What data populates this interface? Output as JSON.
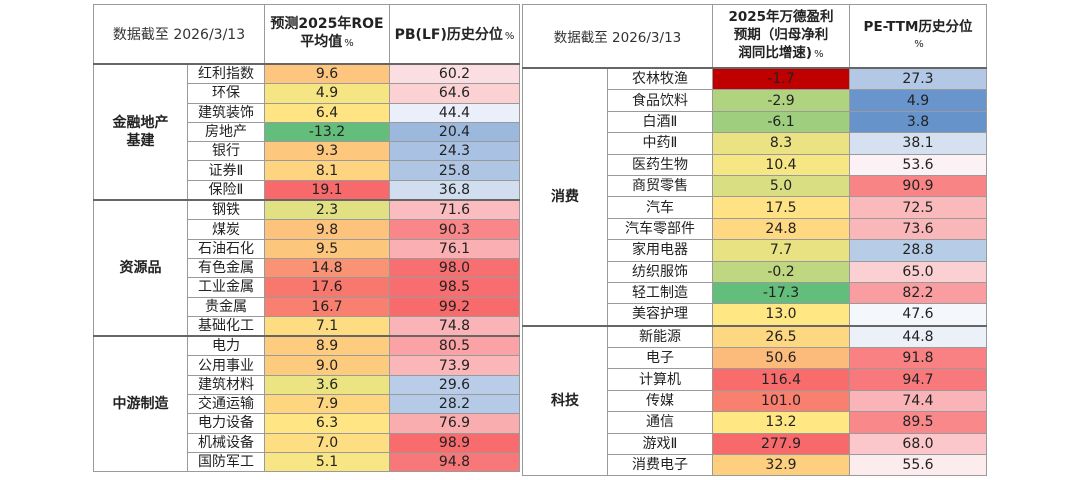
{
  "left": {
    "date_label": "数据截至 2026/3/13",
    "col1_line1": "预测2025年ROE",
    "col1_line2": "平均值",
    "col1_unit": "%",
    "col2": "PB(LF)历史分位",
    "col2_unit": "%",
    "groups": [
      {
        "name": "金融地产基建",
        "rows": [
          {
            "ind": "红利指数",
            "roe": "9.6",
            "pb": "60.2"
          },
          {
            "ind": "环保",
            "roe": "4.9",
            "pb": "64.6"
          },
          {
            "ind": "建筑装饰",
            "roe": "6.4",
            "pb": "44.4"
          },
          {
            "ind": "房地产",
            "roe": "-13.2",
            "pb": "20.4"
          },
          {
            "ind": "银行",
            "roe": "9.3",
            "pb": "24.3"
          },
          {
            "ind": "证券Ⅱ",
            "roe": "8.1",
            "pb": "25.8"
          },
          {
            "ind": "保险Ⅱ",
            "roe": "19.1",
            "pb": "36.8"
          }
        ]
      },
      {
        "name": "资源品",
        "rows": [
          {
            "ind": "钢铁",
            "roe": "2.3",
            "pb": "71.6"
          },
          {
            "ind": "煤炭",
            "roe": "9.8",
            "pb": "90.3"
          },
          {
            "ind": "石油石化",
            "roe": "9.5",
            "pb": "76.1"
          },
          {
            "ind": "有色金属",
            "roe": "14.8",
            "pb": "98.0"
          },
          {
            "ind": "工业金属",
            "roe": "17.6",
            "pb": "98.5"
          },
          {
            "ind": "贵金属",
            "roe": "16.7",
            "pb": "99.2"
          },
          {
            "ind": "基础化工",
            "roe": "7.1",
            "pb": "74.8"
          }
        ]
      },
      {
        "name": "中游制造",
        "rows": [
          {
            "ind": "电力",
            "roe": "8.9",
            "pb": "80.5"
          },
          {
            "ind": "公用事业",
            "roe": "9.0",
            "pb": "73.9"
          },
          {
            "ind": "建筑材料",
            "roe": "3.6",
            "pb": "29.6"
          },
          {
            "ind": "交通运输",
            "roe": "7.9",
            "pb": "28.2"
          },
          {
            "ind": "电力设备",
            "roe": "6.3",
            "pb": "76.9"
          },
          {
            "ind": "机械设备",
            "roe": "7.0",
            "pb": "98.9"
          },
          {
            "ind": "国防军工",
            "roe": "5.1",
            "pb": "94.8"
          }
        ]
      }
    ]
  },
  "right": {
    "date_label": "数据截至 2026/3/13",
    "col1_line1": "2025年万德盈利",
    "col1_line2": "预期（归母净利",
    "col1_line3": "润同比增速)",
    "col1_unit": "%",
    "col2_line1": "PE-TTM历史分位",
    "col2_unit": "%",
    "groups": [
      {
        "name": "消费",
        "rows": [
          {
            "ind": "农林牧渔",
            "g": "-1.7",
            "pe": "27.3"
          },
          {
            "ind": "食品饮料",
            "g": "-2.9",
            "pe": "4.9"
          },
          {
            "ind": "白酒Ⅱ",
            "g": "-6.1",
            "pe": "3.8"
          },
          {
            "ind": "中药Ⅱ",
            "g": "8.3",
            "pe": "38.1"
          },
          {
            "ind": "医药生物",
            "g": "10.4",
            "pe": "53.6"
          },
          {
            "ind": "商贸零售",
            "g": "5.0",
            "pe": "90.9"
          },
          {
            "ind": "汽车",
            "g": "17.5",
            "pe": "72.5"
          },
          {
            "ind": "汽车零部件",
            "g": "24.8",
            "pe": "73.6"
          },
          {
            "ind": "家用电器",
            "g": "7.7",
            "pe": "28.8"
          },
          {
            "ind": "纺织服饰",
            "g": "-0.2",
            "pe": "65.0"
          },
          {
            "ind": "轻工制造",
            "g": "-17.3",
            "pe": "82.2"
          },
          {
            "ind": "美容护理",
            "g": "13.0",
            "pe": "47.6"
          }
        ]
      },
      {
        "name": "科技",
        "rows": [
          {
            "ind": "新能源",
            "g": "26.5",
            "pe": "44.8"
          },
          {
            "ind": "电子",
            "g": "50.6",
            "pe": "91.8"
          },
          {
            "ind": "计算机",
            "g": "116.4",
            "pe": "94.7"
          },
          {
            "ind": "传媒",
            "g": "101.0",
            "pe": "74.4"
          },
          {
            "ind": "通信",
            "g": "13.2",
            "pe": "89.5"
          },
          {
            "ind": "游戏Ⅱ",
            "g": "277.9",
            "pe": "68.0"
          },
          {
            "ind": "消费电子",
            "g": "32.9",
            "pe": "55.6"
          }
        ]
      }
    ]
  },
  "chart_data": [
    {
      "type": "table",
      "title": "",
      "columns": [
        "",
        "",
        "预测2025年ROE平均值 %",
        "PB(LF)历史分位 %"
      ],
      "rows": [
        [
          "金融地产基建",
          "红利指数",
          9.6,
          60.2
        ],
        [
          "金融地产基建",
          "环保",
          4.9,
          64.6
        ],
        [
          "金融地产基建",
          "建筑装饰",
          6.4,
          44.4
        ],
        [
          "金融地产基建",
          "房地产",
          -13.2,
          20.4
        ],
        [
          "金融地产基建",
          "银行",
          9.3,
          24.3
        ],
        [
          "金融地产基建",
          "证券Ⅱ",
          8.1,
          25.8
        ],
        [
          "金融地产基建",
          "保险Ⅱ",
          19.1,
          36.8
        ],
        [
          "资源品",
          "钢铁",
          2.3,
          71.6
        ],
        [
          "资源品",
          "煤炭",
          9.8,
          90.3
        ],
        [
          "资源品",
          "石油石化",
          9.5,
          76.1
        ],
        [
          "资源品",
          "有色金属",
          14.8,
          98.0
        ],
        [
          "资源品",
          "工业金属",
          17.6,
          98.5
        ],
        [
          "资源品",
          "贵金属",
          16.7,
          99.2
        ],
        [
          "资源品",
          "基础化工",
          7.1,
          74.8
        ],
        [
          "中游制造",
          "电力",
          8.9,
          80.5
        ],
        [
          "中游制造",
          "公用事业",
          9.0,
          73.9
        ],
        [
          "中游制造",
          "建筑材料",
          3.6,
          29.6
        ],
        [
          "中游制造",
          "交通运输",
          7.9,
          28.2
        ],
        [
          "中游制造",
          "电力设备",
          6.3,
          76.9
        ],
        [
          "中游制造",
          "机械设备",
          7.0,
          98.9
        ],
        [
          "中游制造",
          "国防军工",
          5.1,
          94.8
        ]
      ]
    },
    {
      "type": "table",
      "title": "",
      "columns": [
        "",
        "",
        "2025年万德盈利预期（归母净利润同比增速) %",
        "PE-TTM历史分位 %"
      ],
      "rows": [
        [
          "消费",
          "农林牧渔",
          -1.7,
          27.3
        ],
        [
          "消费",
          "食品饮料",
          -2.9,
          4.9
        ],
        [
          "消费",
          "白酒Ⅱ",
          -6.1,
          3.8
        ],
        [
          "消费",
          "中药Ⅱ",
          8.3,
          38.1
        ],
        [
          "消费",
          "医药生物",
          10.4,
          53.6
        ],
        [
          "消费",
          "商贸零售",
          5.0,
          90.9
        ],
        [
          "消费",
          "汽车",
          17.5,
          72.5
        ],
        [
          "消费",
          "汽车零部件",
          24.8,
          73.6
        ],
        [
          "消费",
          "家用电器",
          7.7,
          28.8
        ],
        [
          "消费",
          "纺织服饰",
          -0.2,
          65.0
        ],
        [
          "消费",
          "轻工制造",
          -17.3,
          82.2
        ],
        [
          "消费",
          "美容护理",
          13.0,
          47.6
        ],
        [
          "科技",
          "新能源",
          26.5,
          44.8
        ],
        [
          "科技",
          "电子",
          50.6,
          91.8
        ],
        [
          "科技",
          "计算机",
          116.4,
          94.7
        ],
        [
          "科技",
          "传媒",
          101.0,
          74.4
        ],
        [
          "科技",
          "通信",
          13.2,
          89.5
        ],
        [
          "科技",
          "游戏Ⅱ",
          277.9,
          68.0
        ],
        [
          "科技",
          "消费电子",
          32.9,
          55.6
        ]
      ]
    }
  ]
}
